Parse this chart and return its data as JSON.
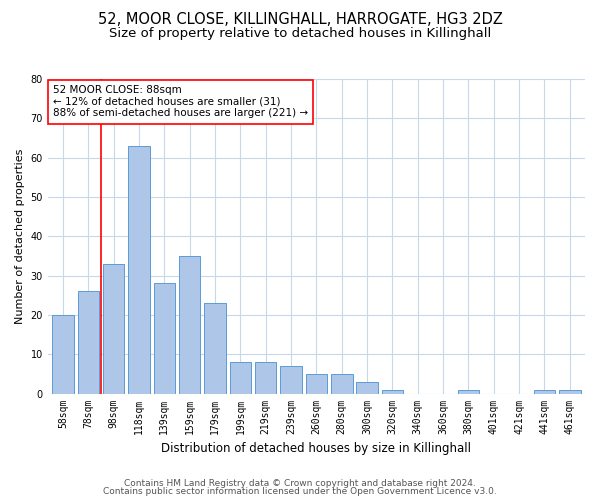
{
  "title1": "52, MOOR CLOSE, KILLINGHALL, HARROGATE, HG3 2DZ",
  "title2": "Size of property relative to detached houses in Killinghall",
  "xlabel": "Distribution of detached houses by size in Killinghall",
  "ylabel": "Number of detached properties",
  "categories": [
    "58sqm",
    "78sqm",
    "98sqm",
    "118sqm",
    "139sqm",
    "159sqm",
    "179sqm",
    "199sqm",
    "219sqm",
    "239sqm",
    "260sqm",
    "280sqm",
    "300sqm",
    "320sqm",
    "340sqm",
    "360sqm",
    "380sqm",
    "401sqm",
    "421sqm",
    "441sqm",
    "461sqm"
  ],
  "values": [
    20,
    26,
    33,
    63,
    28,
    35,
    23,
    8,
    8,
    7,
    5,
    5,
    3,
    1,
    0,
    0,
    1,
    0,
    0,
    1,
    1
  ],
  "bar_color": "#aec6e8",
  "bar_edge_color": "#5b9bd5",
  "annotation_line1": "52 MOOR CLOSE: 88sqm",
  "annotation_line2": "← 12% of detached houses are smaller (31)",
  "annotation_line3": "88% of semi-detached houses are larger (221) →",
  "annotation_box_color": "white",
  "annotation_box_edge_color": "red",
  "marker_color": "red",
  "ylim": [
    0,
    80
  ],
  "yticks": [
    0,
    10,
    20,
    30,
    40,
    50,
    60,
    70,
    80
  ],
  "grid_color": "#c8d8e8",
  "background_color": "white",
  "footer1": "Contains HM Land Registry data © Crown copyright and database right 2024.",
  "footer2": "Contains public sector information licensed under the Open Government Licence v3.0.",
  "title1_fontsize": 10.5,
  "title2_fontsize": 9.5,
  "xlabel_fontsize": 8.5,
  "ylabel_fontsize": 8,
  "tick_fontsize": 7,
  "annotation_fontsize": 7.5,
  "footer_fontsize": 6.5
}
